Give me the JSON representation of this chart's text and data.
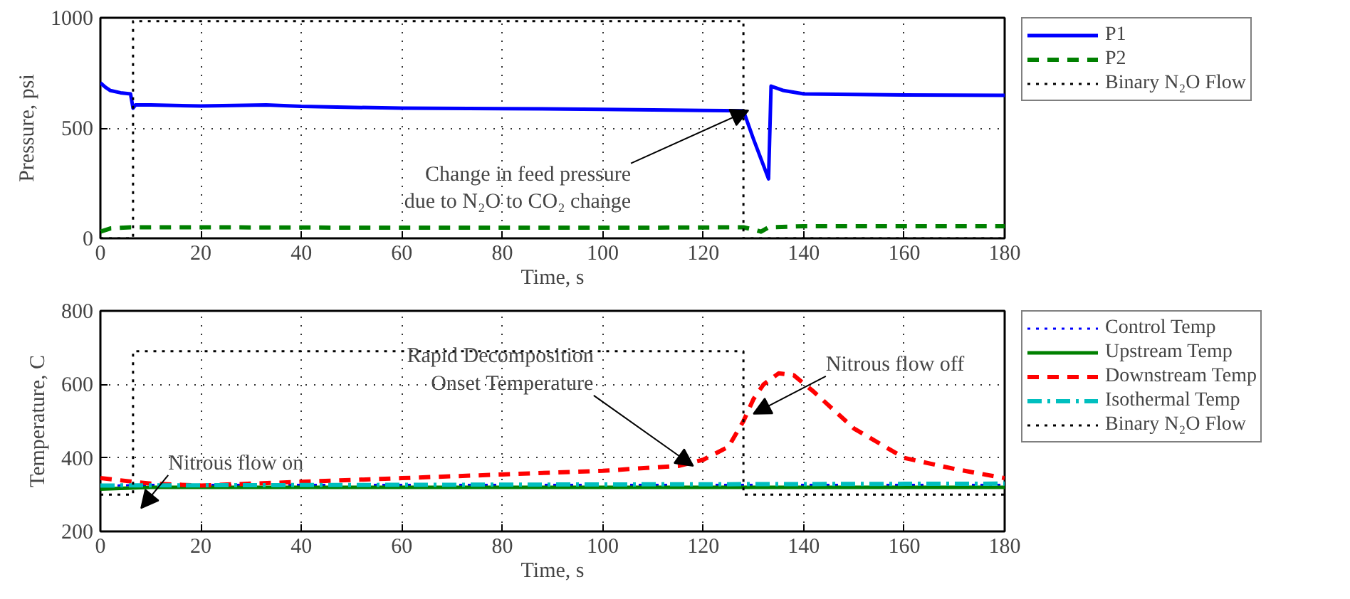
{
  "chart_data": [
    {
      "type": "line",
      "xlabel": "Time, s",
      "ylabel": "Pressure, psi",
      "xlim": [
        0,
        180
      ],
      "ylim": [
        0,
        1000
      ],
      "xticks": [
        0,
        20,
        40,
        60,
        80,
        100,
        120,
        140,
        160,
        180
      ],
      "yticks": [
        0,
        500,
        1000
      ],
      "grid": true,
      "legend": "right",
      "series": [
        {
          "name": "P1",
          "color": "#0000ff",
          "line_style": "solid",
          "x": [
            0,
            1,
            2,
            4,
            6,
            6.5,
            7,
            10,
            20,
            33,
            40,
            60,
            80,
            100,
            120,
            128,
            130,
            133,
            133.5,
            136,
            140,
            160,
            180
          ],
          "values": [
            705,
            685,
            670,
            660,
            655,
            590,
            605,
            605,
            600,
            605,
            598,
            590,
            588,
            585,
            580,
            578,
            450,
            270,
            690,
            670,
            655,
            650,
            648
          ]
        },
        {
          "name": "P2",
          "color": "#008000",
          "line_style": "dashed",
          "x": [
            0,
            2,
            6,
            20,
            60,
            100,
            128,
            130,
            131.5,
            133,
            140,
            180
          ],
          "values": [
            30,
            45,
            50,
            50,
            48,
            48,
            50,
            40,
            30,
            50,
            55,
            55
          ]
        },
        {
          "name": "Binary N₂O Flow",
          "color": "#000000",
          "line_style": "dotted",
          "x": [
            0,
            6.5,
            6.5,
            128,
            128,
            180
          ],
          "values": [
            0,
            0,
            985,
            985,
            0,
            0
          ]
        }
      ],
      "annotations": [
        {
          "text": "Change in feed pressure\ndue to N₂O to CO₂ change",
          "x": 129,
          "y": 580
        }
      ]
    },
    {
      "type": "line",
      "xlabel": "Time, s",
      "ylabel": "Temperature, C",
      "xlim": [
        0,
        180
      ],
      "ylim": [
        200,
        800
      ],
      "xticks": [
        0,
        20,
        40,
        60,
        80,
        100,
        120,
        140,
        160,
        180
      ],
      "yticks": [
        200,
        400,
        600,
        800
      ],
      "grid": true,
      "legend": "right",
      "series": [
        {
          "name": "Control Temp",
          "color": "#0000ff",
          "line_style": "dotted",
          "x": [
            0,
            10,
            180
          ],
          "values": [
            324,
            327,
            327
          ]
        },
        {
          "name": "Upstream Temp",
          "color": "#008000",
          "line_style": "solid",
          "x": [
            0,
            10,
            180
          ],
          "values": [
            315,
            320,
            320
          ]
        },
        {
          "name": "Downstream Temp",
          "color": "#ff0000",
          "line_style": "dashed",
          "x": [
            0,
            10,
            20,
            40,
            60,
            80,
            100,
            115,
            120,
            125,
            128,
            130,
            132,
            135,
            138,
            142,
            150,
            160,
            170,
            180
          ],
          "values": [
            345,
            330,
            325,
            335,
            345,
            355,
            365,
            378,
            395,
            430,
            500,
            560,
            600,
            630,
            625,
            580,
            480,
            400,
            370,
            345
          ]
        },
        {
          "name": "Isothermal Temp",
          "color": "#00bfbf",
          "line_style": "dashdot",
          "x": [
            0,
            180
          ],
          "values": [
            325,
            330
          ]
        },
        {
          "name": "Binary N₂O Flow",
          "color": "#000000",
          "line_style": "dotted",
          "x": [
            0,
            6.5,
            6.5,
            128,
            128,
            180
          ],
          "values": [
            300,
            300,
            690,
            690,
            300,
            300
          ]
        }
      ],
      "annotations": [
        "Nitrous flow on",
        {
          "text": "Rapid Decomposition\nOnset Temperature",
          "x": 118,
          "y": 378
        },
        {
          "text": "Nitrous flow off",
          "x": 130,
          "y": 520
        }
      ]
    }
  ]
}
